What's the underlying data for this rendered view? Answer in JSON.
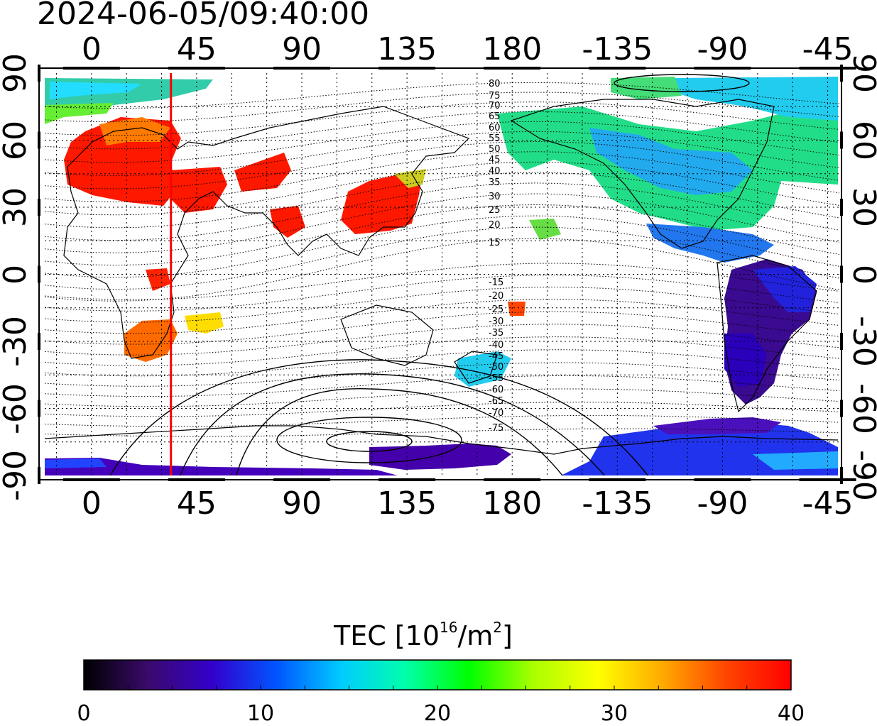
{
  "title": "2024-06-05/09:40:00",
  "map": {
    "lon_ticks": [
      "0",
      "45",
      "90",
      "135",
      "180",
      "-135",
      "-90",
      "-45"
    ],
    "lon_values": [
      0,
      45,
      90,
      135,
      180,
      225,
      270,
      315
    ],
    "lat_ticks": [
      "90",
      "60",
      "30",
      "0",
      "-30",
      "-60",
      "-90"
    ],
    "lat_values": [
      90,
      60,
      30,
      0,
      -30,
      -60,
      -90
    ],
    "lon_range": [
      -20,
      320
    ],
    "lat_range": [
      -90,
      90
    ],
    "contour_labels": [
      "80",
      "75",
      "70",
      "65",
      "60",
      "55",
      "50",
      "45",
      "40",
      "35",
      "30",
      "25",
      "20",
      "15",
      "-15",
      "-20",
      "-25",
      "-30",
      "-35",
      "-40",
      "-45",
      "-50",
      "-55",
      "-60",
      "-65",
      "-70",
      "-75"
    ],
    "marker_longitude": 34,
    "marker_color": "#ff0000"
  },
  "colorbar": {
    "title_main": "TEC  [10",
    "title_sup1": "16",
    "title_mid": "/m",
    "title_sup2": "2",
    "title_end": "]",
    "ticks": [
      "0",
      "10",
      "20",
      "30",
      "40"
    ],
    "min": 0,
    "max": 40,
    "stops": [
      "#000000",
      "#3a0a6b",
      "#3300cc",
      "#0055ff",
      "#00ccff",
      "#00ffaa",
      "#00ff00",
      "#aaff00",
      "#ffff00",
      "#ffaa00",
      "#ff4400",
      "#ff0000"
    ]
  },
  "chart_data": {
    "type": "heatmap",
    "title": "2024-06-05/09:40:00",
    "xlabel": "",
    "ylabel": "",
    "x_range": [
      -20,
      320
    ],
    "y_range": [
      -90,
      90
    ],
    "colorbar_label": "TEC [10^16/m^2]",
    "colorbar_range": [
      0,
      40
    ],
    "regions": [
      {
        "lon": [
          -20,
          45
        ],
        "lat": [
          35,
          70
        ],
        "tec": 40
      },
      {
        "lon": [
          40,
          80
        ],
        "lat": [
          30,
          55
        ],
        "tec": 40
      },
      {
        "lon": [
          115,
          150
        ],
        "lat": [
          22,
          45
        ],
        "tec": 39
      },
      {
        "lon": [
          15,
          40
        ],
        "lat": [
          -40,
          -25
        ],
        "tec": 36
      },
      {
        "lon": [
          220,
          300
        ],
        "lat": [
          30,
          65
        ],
        "tec": 18
      },
      {
        "lon": [
          270,
          325
        ],
        "lat": [
          -50,
          -5
        ],
        "tec": 5
      },
      {
        "lon": [
          150,
          175
        ],
        "lat": [
          -48,
          -35
        ],
        "tec": 19
      },
      {
        "lon": [
          125,
          180
        ],
        "lat": [
          -88,
          -78
        ],
        "tec": 6
      },
      {
        "lon": [
          230,
          320
        ],
        "lat": [
          -88,
          -70
        ],
        "tec": 9
      },
      {
        "lon": [
          -20,
          80
        ],
        "lat": [
          75,
          88
        ],
        "tec": 19
      }
    ]
  }
}
